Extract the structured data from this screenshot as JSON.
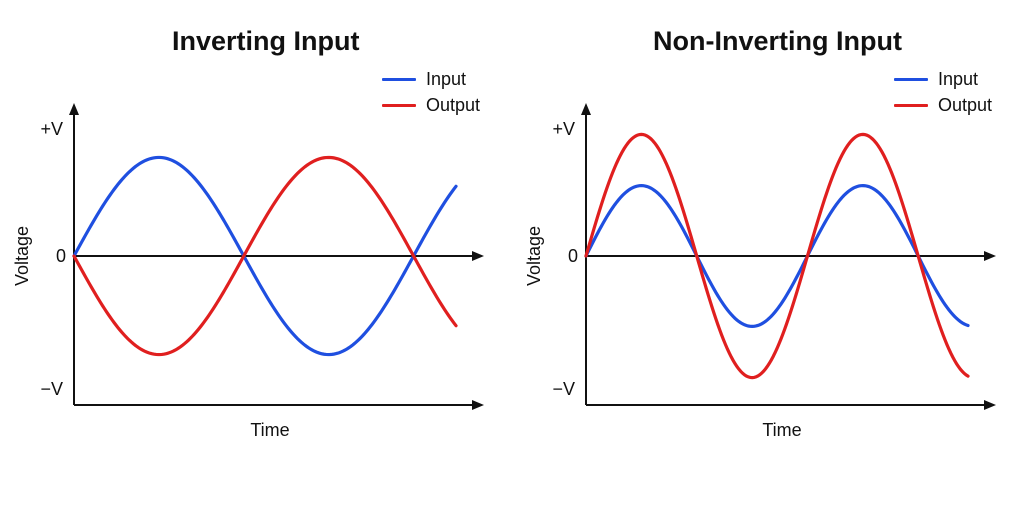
{
  "chart_data": [
    {
      "type": "line",
      "title": "Inverting Input",
      "xlabel": "Time",
      "ylabel": "Voltage",
      "y_tick_labels": [
        "+V",
        "0",
        "−V"
      ],
      "ylim": [
        -1.3,
        1.3
      ],
      "xlim": [
        0,
        1.1
      ],
      "legend": "top-right",
      "grid": false,
      "series": [
        {
          "name": "Input",
          "color": "#1f4fe0",
          "amplitude": 0.77,
          "period": 0.92,
          "phase": 0,
          "x_end": 1.035
        },
        {
          "name": "Output",
          "color": "#e01f1f",
          "amplitude": -0.77,
          "period": 0.92,
          "phase": 0,
          "x_end": 1.035
        }
      ]
    },
    {
      "type": "line",
      "title": "Non-Inverting Input",
      "xlabel": "Time",
      "ylabel": "Voltage",
      "y_tick_labels": [
        "+V",
        "0",
        "−V"
      ],
      "ylim": [
        -1.3,
        1.3
      ],
      "xlim": [
        0,
        1.1
      ],
      "legend": "top-right",
      "grid": false,
      "series": [
        {
          "name": "Input",
          "color": "#1f4fe0",
          "amplitude": 0.55,
          "period": 0.6,
          "phase": 0,
          "x_end": 1.035
        },
        {
          "name": "Output",
          "color": "#e01f1f",
          "amplitude": 0.95,
          "period": 0.6,
          "phase": 0,
          "x_end": 1.035
        }
      ]
    }
  ]
}
